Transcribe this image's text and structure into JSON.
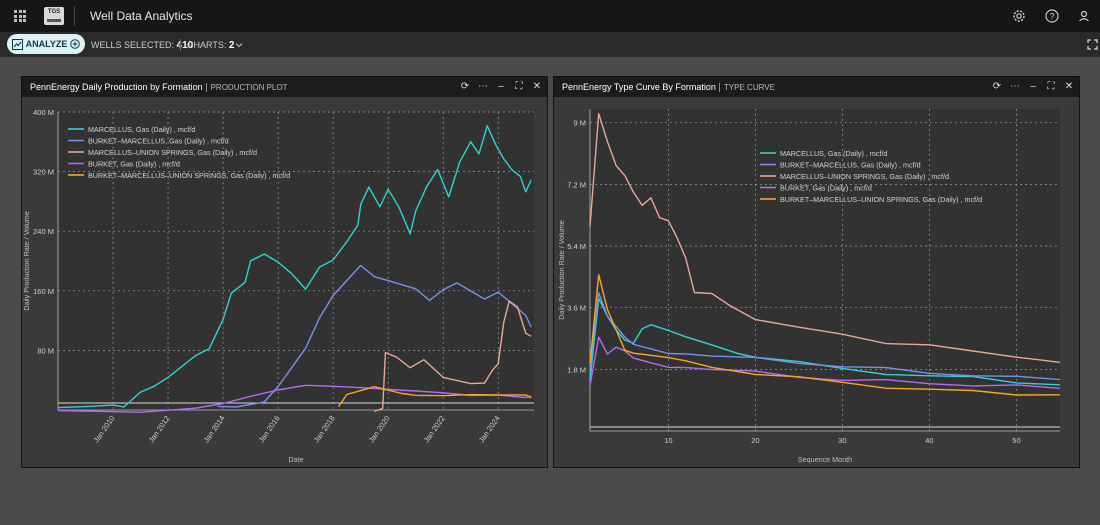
{
  "app": {
    "title": "Well Data Analytics",
    "logo_text": "TGS"
  },
  "toolbar": {
    "analyze_label": "ANALYZE",
    "wells_label": "WELLS SELECTED:",
    "wells_value": "410",
    "charts_label": "CHARTS:",
    "charts_value": "2"
  },
  "icons": [
    "apps-grid-icon",
    "settings-icon",
    "help-icon",
    "user-icon",
    "chevron-down-icon",
    "expand-icon",
    "refresh-icon",
    "more-icon",
    "minimize-icon",
    "maximize-icon",
    "close-icon"
  ],
  "colors": {
    "marcellus": "#2fd3cf",
    "burket_marcellus": "#7b8fe8",
    "marcellus_union": "#e8a79a",
    "burket": "#b36bf5",
    "burket_marcellus_union": "#f5a623"
  },
  "panels": [
    {
      "title": "PennEnergy Daily Production by Formation",
      "subtitle": "PRODUCTION PLOT",
      "chart_data": {
        "type": "line",
        "xlabel": "Date",
        "ylabel": "Daily Production Rate / Volume",
        "y_ticks": [
          "80 M",
          "160 M",
          "240 M",
          "320 M",
          "400 M"
        ],
        "x_ticks": [
          "Jan 2010",
          "Jan 2012",
          "Jan 2014",
          "Jan 2016",
          "Jan 2018",
          "Jan 2020",
          "Jan 2022",
          "Jan 2024"
        ],
        "ylim": [
          0,
          400
        ],
        "xlim": [
          2008.0,
          2025.3
        ],
        "y_unit": "M",
        "legend_position": "top-left",
        "grid": true,
        "series": [
          {
            "name": "MARCELLUS, Gas (Daily) , mcf/d",
            "color": "#2fd3cf",
            "points": [
              [
                2008.0,
                2
              ],
              [
                2009.0,
                2
              ],
              [
                2010.0,
                3
              ],
              [
                2010.4,
                8
              ],
              [
                2011.0,
                20
              ],
              [
                2011.5,
                28
              ],
              [
                2012.0,
                40
              ],
              [
                2012.5,
                55
              ],
              [
                2013.0,
                70
              ],
              [
                2013.5,
                80
              ],
              [
                2014.0,
                120
              ],
              [
                2014.3,
                160
              ],
              [
                2014.8,
                175
              ],
              [
                2015.0,
                200
              ],
              [
                2015.5,
                210
              ],
              [
                2016.0,
                200
              ],
              [
                2016.5,
                185
              ],
              [
                2017.0,
                165
              ],
              [
                2017.5,
                195
              ],
              [
                2018.0,
                205
              ],
              [
                2018.5,
                230
              ],
              [
                2018.9,
                245
              ],
              [
                2019.0,
                280
              ],
              [
                2019.3,
                300
              ],
              [
                2019.7,
                275
              ],
              [
                2020.0,
                300
              ],
              [
                2020.4,
                270
              ],
              [
                2020.8,
                235
              ],
              [
                2021.0,
                270
              ],
              [
                2021.4,
                300
              ],
              [
                2021.8,
                320
              ],
              [
                2022.2,
                290
              ],
              [
                2022.6,
                330
              ],
              [
                2023.0,
                360
              ],
              [
                2023.3,
                340
              ],
              [
                2023.6,
                380
              ],
              [
                2023.9,
                360
              ],
              [
                2024.2,
                340
              ],
              [
                2024.5,
                320
              ],
              [
                2024.8,
                310
              ],
              [
                2025.0,
                290
              ],
              [
                2025.2,
                310
              ]
            ]
          },
          {
            "name": "BURKET–MARCELLUS, Gas (Daily) , mcf/d",
            "color": "#7b8fe8",
            "points": [
              [
                2013.8,
                2
              ],
              [
                2014.5,
                5
              ],
              [
                2015.5,
                10
              ],
              [
                2016.0,
                30
              ],
              [
                2016.5,
                55
              ],
              [
                2017.0,
                80
              ],
              [
                2017.5,
                120
              ],
              [
                2018.0,
                150
              ],
              [
                2018.5,
                170
              ],
              [
                2019.0,
                190
              ],
              [
                2019.5,
                175
              ],
              [
                2020.0,
                170
              ],
              [
                2020.5,
                165
              ],
              [
                2021.0,
                160
              ],
              [
                2021.5,
                145
              ],
              [
                2022.0,
                160
              ],
              [
                2022.5,
                170
              ],
              [
                2023.0,
                160
              ],
              [
                2023.5,
                150
              ],
              [
                2024.0,
                160
              ],
              [
                2024.5,
                145
              ],
              [
                2025.0,
                130
              ],
              [
                2025.2,
                110
              ]
            ]
          },
          {
            "name": "MARCELLUS–UNION SPRINGS, Gas (Daily) , mcf/d",
            "color": "#e8a79a",
            "points": [
              [
                2019.5,
                2
              ],
              [
                2019.8,
                2
              ],
              [
                2019.9,
                75
              ],
              [
                2020.3,
                70
              ],
              [
                2020.8,
                55
              ],
              [
                2021.3,
                65
              ],
              [
                2022.0,
                45
              ],
              [
                2022.5,
                40
              ],
              [
                2023.0,
                35
              ],
              [
                2023.5,
                35
              ],
              [
                2023.8,
                50
              ],
              [
                2024.0,
                60
              ],
              [
                2024.2,
                120
              ],
              [
                2024.4,
                150
              ],
              [
                2024.7,
                140
              ],
              [
                2025.0,
                100
              ],
              [
                2025.2,
                100
              ]
            ]
          },
          {
            "name": "BURKET, Gas (Daily) , mcf/d",
            "color": "#b36bf5",
            "points": [
              [
                2008.0,
                1
              ],
              [
                2011.0,
                1
              ],
              [
                2013.0,
                5
              ],
              [
                2014.0,
                10
              ],
              [
                2015.0,
                18
              ],
              [
                2016.0,
                25
              ],
              [
                2017.0,
                30
              ],
              [
                2018.0,
                28
              ],
              [
                2019.0,
                26
              ],
              [
                2020.0,
                24
              ],
              [
                2021.0,
                23
              ],
              [
                2022.0,
                22
              ],
              [
                2023.0,
                20
              ],
              [
                2024.0,
                22
              ],
              [
                2025.0,
                20
              ],
              [
                2025.2,
                18
              ]
            ]
          },
          {
            "name": "BURKET–MARCELLUS–UNION SPRINGS, Gas (Daily) , mcf/d",
            "color": "#f5a623",
            "points": [
              [
                2018.2,
                5
              ],
              [
                2018.5,
                25
              ],
              [
                2019.0,
                30
              ],
              [
                2019.5,
                35
              ],
              [
                2020.0,
                30
              ],
              [
                2020.5,
                25
              ],
              [
                2021.0,
                22
              ],
              [
                2022.0,
                20
              ],
              [
                2023.0,
                20
              ],
              [
                2024.0,
                18
              ],
              [
                2025.0,
                17
              ],
              [
                2025.2,
                17
              ]
            ]
          }
        ]
      }
    },
    {
      "title": "PennEnergy Type Curve By Formation",
      "subtitle": "TYPE CURVE",
      "chart_data": {
        "type": "line",
        "xlabel": "Sequence Month",
        "ylabel": "Daily Production Rate / Volume",
        "y_ticks": [
          "1.8 M",
          "3.6 M",
          "5.4 M",
          "7.2 M",
          "9 M"
        ],
        "x_ticks": [
          "10",
          "20",
          "30",
          "40",
          "50"
        ],
        "ylim": [
          0,
          9.4
        ],
        "xlim": [
          1,
          55
        ],
        "y_unit": "M",
        "legend_position": "top-right",
        "grid": true,
        "series": [
          {
            "name": "MARCELLUS, Gas (Daily) , mcf/d",
            "color": "#2fd3cf",
            "points": [
              [
                1,
                1.5
              ],
              [
                2,
                3.9
              ],
              [
                3,
                3.4
              ],
              [
                4,
                3.0
              ],
              [
                5,
                2.7
              ],
              [
                6,
                2.6
              ],
              [
                7,
                3.0
              ],
              [
                8,
                3.1
              ],
              [
                10,
                2.9
              ],
              [
                12,
                2.7
              ],
              [
                15,
                2.5
              ],
              [
                18,
                2.3
              ],
              [
                20,
                2.2
              ],
              [
                25,
                2.0
              ],
              [
                30,
                1.8
              ],
              [
                35,
                1.7
              ],
              [
                40,
                1.6
              ],
              [
                45,
                1.55
              ],
              [
                50,
                1.45
              ],
              [
                55,
                1.35
              ]
            ]
          },
          {
            "name": "BURKET–MARCELLUS, Gas (Daily) , mcf/d",
            "color": "#7b8fe8",
            "points": [
              [
                1,
                1.8
              ],
              [
                2,
                4.0
              ],
              [
                3,
                3.3
              ],
              [
                4,
                3.0
              ],
              [
                5,
                2.7
              ],
              [
                6,
                2.5
              ],
              [
                8,
                2.4
              ],
              [
                10,
                2.3
              ],
              [
                12,
                2.3
              ],
              [
                15,
                2.2
              ],
              [
                20,
                2.1
              ],
              [
                25,
                2.0
              ],
              [
                30,
                1.9
              ],
              [
                35,
                1.8
              ],
              [
                40,
                1.7
              ],
              [
                45,
                1.65
              ],
              [
                50,
                1.55
              ],
              [
                55,
                1.5
              ]
            ]
          },
          {
            "name": "MARCELLUS–UNION SPRINGS, Gas (Daily) , mcf/d",
            "color": "#e8a79a",
            "points": [
              [
                1,
                6.0
              ],
              [
                2,
                9.3
              ],
              [
                3,
                8.5
              ],
              [
                4,
                7.8
              ],
              [
                5,
                7.5
              ],
              [
                6,
                7.0
              ],
              [
                7,
                6.6
              ],
              [
                8,
                6.8
              ],
              [
                9,
                6.2
              ],
              [
                10,
                6.1
              ],
              [
                11,
                5.6
              ],
              [
                12,
                5.0
              ],
              [
                13,
                4.0
              ],
              [
                15,
                4.0
              ],
              [
                17,
                3.7
              ],
              [
                20,
                3.3
              ],
              [
                25,
                3.0
              ],
              [
                30,
                2.8
              ],
              [
                35,
                2.6
              ],
              [
                40,
                2.5
              ],
              [
                45,
                2.3
              ],
              [
                50,
                2.2
              ],
              [
                53,
                2.1
              ],
              [
                55,
                2.0
              ]
            ]
          },
          {
            "name": "BURKET, Gas (Daily) , mcf/d",
            "color": "#b36bf5",
            "points": [
              [
                1,
                1.3
              ],
              [
                2,
                2.7
              ],
              [
                3,
                2.2
              ],
              [
                4,
                2.4
              ],
              [
                5,
                2.3
              ],
              [
                6,
                2.1
              ],
              [
                8,
                2.0
              ],
              [
                10,
                1.9
              ],
              [
                12,
                1.9
              ],
              [
                15,
                1.8
              ],
              [
                20,
                1.7
              ],
              [
                25,
                1.6
              ],
              [
                30,
                1.5
              ],
              [
                35,
                1.45
              ],
              [
                40,
                1.4
              ],
              [
                45,
                1.35
              ],
              [
                50,
                1.3
              ],
              [
                55,
                1.25
              ]
            ]
          },
          {
            "name": "BURKET–MARCELLUS–UNION SPRINGS, Gas (Daily) , mcf/d",
            "color": "#f5a623",
            "points": [
              [
                1,
                2.0
              ],
              [
                2,
                4.6
              ],
              [
                3,
                3.6
              ],
              [
                4,
                3.0
              ],
              [
                5,
                2.4
              ],
              [
                6,
                2.3
              ],
              [
                8,
                2.2
              ],
              [
                10,
                2.1
              ],
              [
                12,
                2.0
              ],
              [
                15,
                1.85
              ],
              [
                20,
                1.7
              ],
              [
                25,
                1.55
              ],
              [
                30,
                1.4
              ],
              [
                35,
                1.3
              ],
              [
                40,
                1.2
              ],
              [
                45,
                1.15
              ],
              [
                50,
                1.1
              ],
              [
                55,
                1.05
              ]
            ]
          }
        ]
      }
    }
  ]
}
